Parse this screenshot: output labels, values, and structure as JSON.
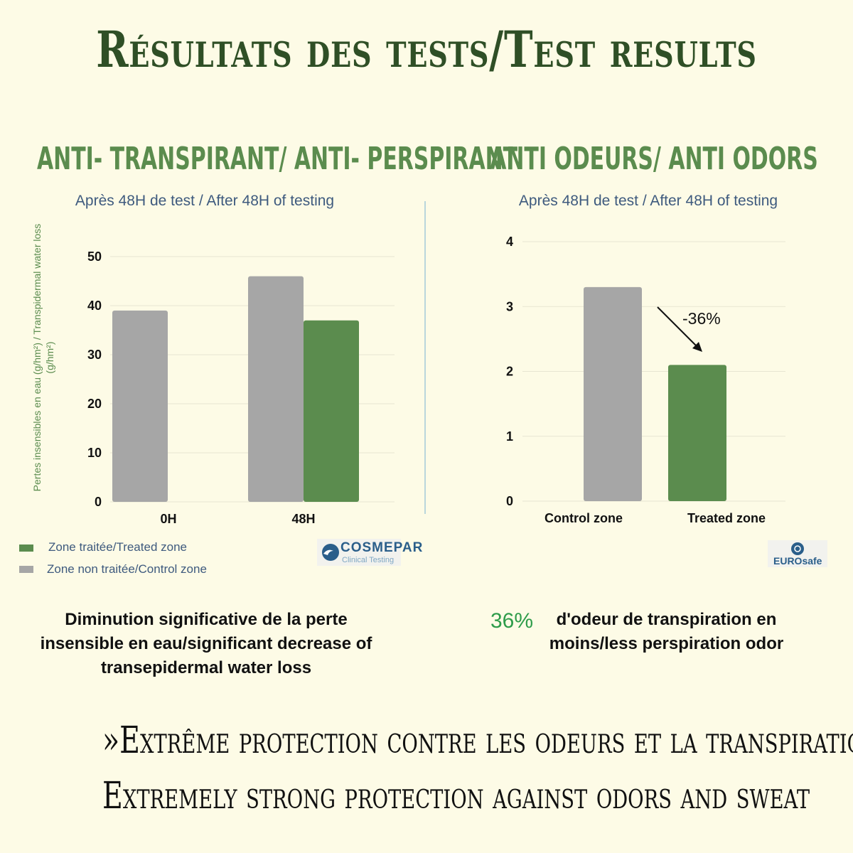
{
  "title": "Résultats des tests/Test results",
  "left_panel": {
    "heading": "ANTI- TRANSPIRANT/ ANTI- PERSPIRANT",
    "subtitle": "Après 48H de test / After 48H of testing",
    "ylabel": "Pertes insensibles en eau (g/hm²) / Transpidermal water loss (g/hm²)",
    "legend": [
      {
        "label": "Zone traitée/Treated zone",
        "color": "#5b8c4e"
      },
      {
        "label": "Zone non traitée/Control zone",
        "color": "#a6a6a6"
      }
    ],
    "logo": {
      "name": "COSMEPAR",
      "tagline": "Clinical Testing"
    },
    "summary": "Diminution significative de la perte insensible en eau/significant decrease of transepidermal water loss"
  },
  "right_panel": {
    "heading": "ANTI ODEURS/ ANTI ODORS",
    "subtitle": "Après 48H de test / After 48H of testing",
    "annotation": "-36%",
    "logo": {
      "name": "EUROsafe"
    },
    "summary_pct": "36%",
    "summary": "d'odeur de transpiration en moins/less perspiration odor"
  },
  "slogan_line1": "»Extrême protection contre les odeurs et la transpiration/",
  "slogan_line2": "Extremely strong protection against odors and sweat",
  "colors": {
    "treated": "#5b8c4e",
    "control": "#a6a6a6",
    "title": "#2f4f26",
    "accent": "#5b8c4e"
  },
  "chart_data": [
    {
      "type": "bar",
      "categories": [
        "0H",
        "48H"
      ],
      "series": [
        {
          "name": "Zone non traitée/Control zone",
          "values": [
            39,
            46
          ]
        },
        {
          "name": "Zone traitée/Treated zone",
          "values": [
            null,
            37
          ]
        }
      ],
      "ylim": [
        0,
        50
      ],
      "yticks": [
        0,
        10,
        20,
        30,
        40,
        50
      ],
      "ylabel": "Pertes insensibles en eau (g/hm²) / Transpidermal water loss (g/hm²)",
      "title": "Après 48H de test / After 48H of testing",
      "grid": true
    },
    {
      "type": "bar",
      "categories": [
        "Control zone",
        "Treated zone"
      ],
      "values": [
        3.3,
        2.1
      ],
      "ylim": [
        0,
        4
      ],
      "yticks": [
        0,
        1,
        2,
        3,
        4
      ],
      "annotation": "-36%",
      "title": "Après 48H de test / After 48H of testing",
      "grid": true
    }
  ]
}
